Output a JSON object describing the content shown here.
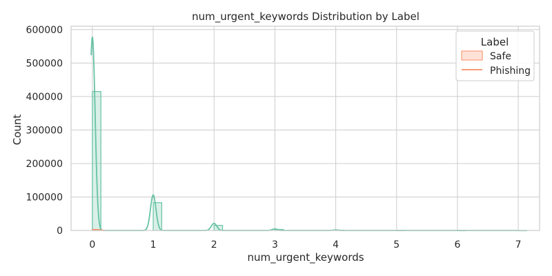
{
  "chart_data": {
    "type": "histogram",
    "title": "num_urgent_keywords Distribution by Label",
    "xlabel": "num_urgent_keywords",
    "ylabel": "Count",
    "xlim": [
      -0.35,
      7.35
    ],
    "ylim": [
      0,
      610000
    ],
    "x_ticks": [
      0,
      1,
      2,
      3,
      4,
      5,
      6,
      7
    ],
    "y_ticks": [
      0,
      100000,
      200000,
      300000,
      400000,
      500000,
      600000
    ],
    "bin_width": 0.14,
    "grid": true,
    "legend": {
      "title": "Label",
      "position": "top-right",
      "entries": [
        "Safe",
        "Phishing"
      ]
    },
    "series": [
      {
        "name": "Safe",
        "color": "#fc8d62",
        "bars": [
          {
            "x": 0,
            "count": 3000
          }
        ],
        "kde": [
          [
            0,
            3000
          ],
          [
            0.08,
            1500
          ],
          [
            0.2,
            0
          ]
        ]
      },
      {
        "name": "Phishing",
        "color": "#66c2a5",
        "bars": [
          {
            "x": 0,
            "count": 415000
          },
          {
            "x": 1,
            "count": 83000
          },
          {
            "x": 2,
            "count": 15000
          },
          {
            "x": 3,
            "count": 3000
          },
          {
            "x": 4,
            "count": 1000
          },
          {
            "x": 5,
            "count": 300
          },
          {
            "x": 6,
            "count": 100
          },
          {
            "x": 7,
            "count": 100
          }
        ],
        "kde_peaks": [
          {
            "x": 0,
            "value": 578000
          },
          {
            "x": 1,
            "value": 106000
          },
          {
            "x": 2,
            "value": 21000
          },
          {
            "x": 3,
            "value": 4500
          },
          {
            "x": 4,
            "value": 1500
          }
        ]
      }
    ]
  }
}
